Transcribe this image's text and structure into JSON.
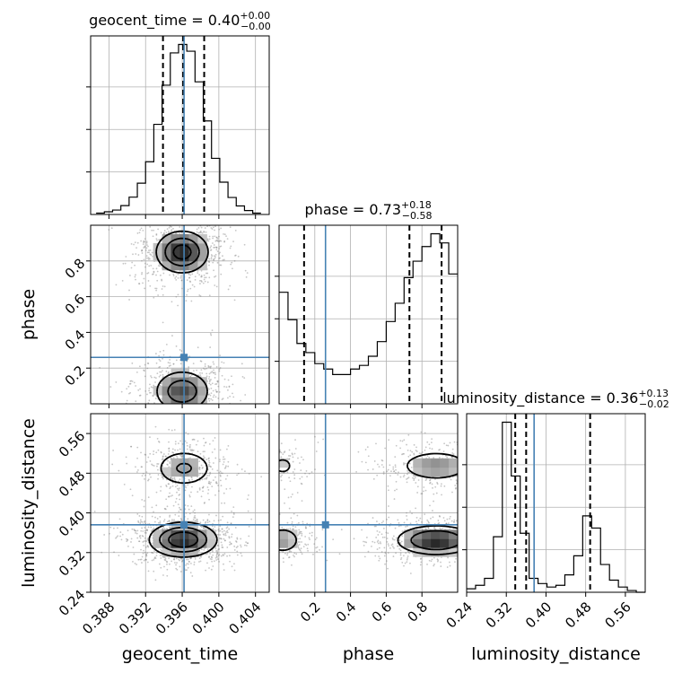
{
  "chart_data": {
    "type": "corner",
    "parameters": [
      "geocent_time",
      "phase",
      "luminosity_distance"
    ],
    "truth": {
      "geocent_time": 0.3962,
      "phase": 0.26,
      "luminosity_distance": 0.376
    },
    "titles": [
      {
        "param": "geocent_time",
        "text": "geocent_time = 0.40",
        "plus": "+0.00",
        "minus": "−0.00"
      },
      {
        "param": "phase",
        "text": "phase = 0.73",
        "plus": "+0.18",
        "minus": "−0.58"
      },
      {
        "param": "luminosity_distance",
        "text": "luminosity_distance = 0.36",
        "plus": "+0.13",
        "minus": "−0.02"
      }
    ],
    "axes": {
      "geocent_time": {
        "range": [
          0.386,
          0.4055
        ],
        "ticks": [
          "0.388",
          "0.392",
          "0.396",
          "0.400",
          "0.404"
        ],
        "tick_values": [
          0.388,
          0.392,
          0.396,
          0.4,
          0.404
        ]
      },
      "phase": {
        "range": [
          0.0,
          1.0
        ],
        "ticks": [
          "0.2",
          "0.4",
          "0.6",
          "0.8"
        ],
        "tick_values": [
          0.2,
          0.4,
          0.6,
          0.8
        ]
      },
      "luminosity_distance": {
        "range": [
          0.24,
          0.6
        ],
        "ticks": [
          "0.24",
          "0.32",
          "0.40",
          "0.48",
          "0.56"
        ],
        "tick_values": [
          0.24,
          0.32,
          0.4,
          0.48,
          0.56
        ]
      }
    },
    "histograms": {
      "geocent_time": {
        "bin_edges": [
          0.3866,
          0.3875,
          0.3884,
          0.3893,
          0.3902,
          0.3911,
          0.392,
          0.3929,
          0.3938,
          0.3947,
          0.3956,
          0.3965,
          0.3974,
          0.3983,
          0.3992,
          0.4001,
          0.401,
          0.4019,
          0.4028,
          0.4037,
          0.4046
        ],
        "counts": [
          0.8,
          1.6,
          2.6,
          5.2,
          10.2,
          18.4,
          31.0,
          53.0,
          76.0,
          95.0,
          100.0,
          96.0,
          78.0,
          55.0,
          33.0,
          19.0,
          10.0,
          5.0,
          2.3,
          0.8
        ],
        "quantiles": [
          0.3939,
          0.3961,
          0.3984
        ]
      },
      "phase": {
        "bin_edges": [
          0.0,
          0.05,
          0.1,
          0.15,
          0.2,
          0.25,
          0.3,
          0.35,
          0.4,
          0.45,
          0.5,
          0.55,
          0.6,
          0.65,
          0.7,
          0.75,
          0.8,
          0.85,
          0.9,
          0.95,
          1.0
        ],
        "counts": [
          61,
          46,
          33,
          28,
          22,
          19,
          16,
          16,
          19,
          21,
          26,
          34,
          45,
          55,
          69,
          78,
          86,
          93,
          88,
          71
        ],
        "quantiles": [
          0.14,
          0.73,
          0.91
        ]
      },
      "luminosity_distance": {
        "bin_edges": [
          0.24,
          0.258,
          0.276,
          0.294,
          0.312,
          0.33,
          0.348,
          0.366,
          0.384,
          0.402,
          0.42,
          0.438,
          0.456,
          0.474,
          0.492,
          0.51,
          0.528,
          0.546,
          0.564,
          0.582,
          0.6
        ],
        "counts": [
          2,
          4,
          8,
          32,
          98,
          67,
          34,
          8,
          5,
          3,
          4,
          10,
          21,
          44,
          37,
          16,
          7,
          3,
          1,
          0
        ],
        "quantiles": [
          0.338,
          0.36,
          0.489
        ]
      }
    },
    "densities": [
      {
        "x": "geocent_time",
        "y": "phase",
        "blobs": [
          {
            "cx": 0.396,
            "cy": 0.85,
            "sx": 0.0017,
            "sy": 0.07,
            "w": 1.0
          },
          {
            "cx": 0.396,
            "cy": 0.07,
            "sx": 0.0018,
            "sy": 0.07,
            "w": 0.8
          }
        ],
        "levels": [
          0.25,
          0.55,
          0.85
        ]
      },
      {
        "x": "geocent_time",
        "y": "luminosity_distance",
        "blobs": [
          {
            "cx": 0.3961,
            "cy": 0.346,
            "sx": 0.0019,
            "sy": 0.018,
            "w": 1.0
          },
          {
            "cx": 0.3962,
            "cy": 0.49,
            "sx": 0.0017,
            "sy": 0.02,
            "w": 0.45
          }
        ],
        "levels": [
          0.15,
          0.4,
          0.7
        ]
      },
      {
        "x": "phase",
        "y": "luminosity_distance",
        "blobs": [
          {
            "cx": 0.88,
            "cy": 0.345,
            "sx": 0.12,
            "sy": 0.016,
            "w": 1.0
          },
          {
            "cx": 0.02,
            "cy": 0.345,
            "sx": 0.06,
            "sy": 0.016,
            "w": 0.45
          },
          {
            "cx": 0.88,
            "cy": 0.495,
            "sx": 0.12,
            "sy": 0.018,
            "w": 0.5
          },
          {
            "cx": 0.02,
            "cy": 0.495,
            "sx": 0.06,
            "sy": 0.018,
            "w": 0.25
          }
        ],
        "levels": [
          0.2,
          0.5
        ]
      }
    ]
  }
}
